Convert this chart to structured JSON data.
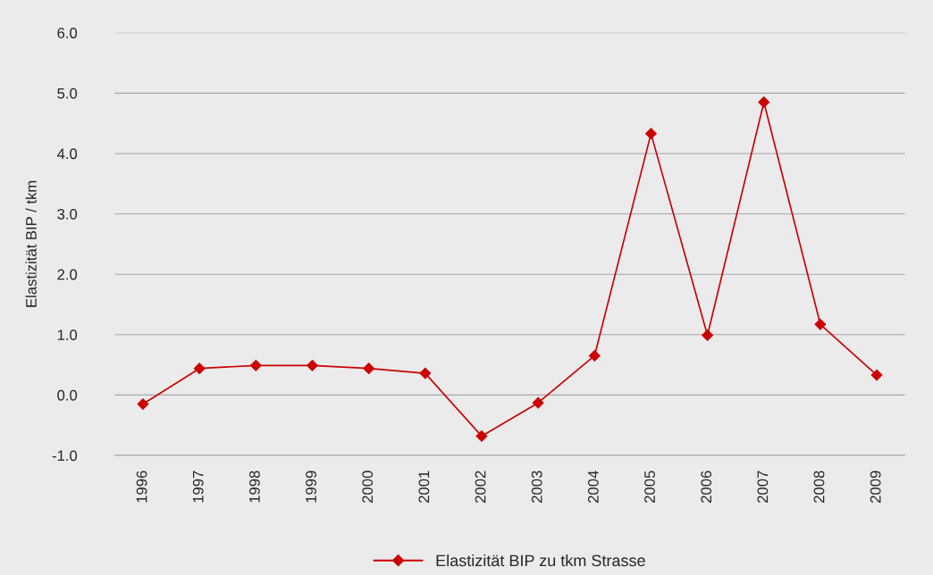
{
  "chart_data": {
    "type": "line",
    "ylabel": "Elastizität BIP / tkm",
    "categories": [
      "1996",
      "1997",
      "1998",
      "1999",
      "2000",
      "2001",
      "2002",
      "2003",
      "2004",
      "2005",
      "2006",
      "2007",
      "2008",
      "2009"
    ],
    "series": [
      {
        "name": "Elastizität BIP zu tkm Strasse",
        "color": "#cc0000",
        "values": [
          -0.15,
          0.44,
          0.49,
          0.49,
          0.44,
          0.36,
          -0.68,
          -0.13,
          0.65,
          4.33,
          0.99,
          4.85,
          1.17,
          0.33
        ]
      }
    ],
    "ylim": [
      -1,
      6
    ],
    "yticks": [
      {
        "value": -1,
        "label": "-1.0"
      },
      {
        "value": 0,
        "label": "0.0"
      },
      {
        "value": 1,
        "label": "1.0"
      },
      {
        "value": 2,
        "label": "2.0"
      },
      {
        "value": 3,
        "label": "3.0"
      },
      {
        "value": 4,
        "label": "4.0"
      },
      {
        "value": 5,
        "label": "5.0"
      },
      {
        "value": 6,
        "label": "6.0"
      }
    ],
    "grid": "y",
    "legend": "bottom",
    "marker": "diamond",
    "line_style": "solid"
  }
}
